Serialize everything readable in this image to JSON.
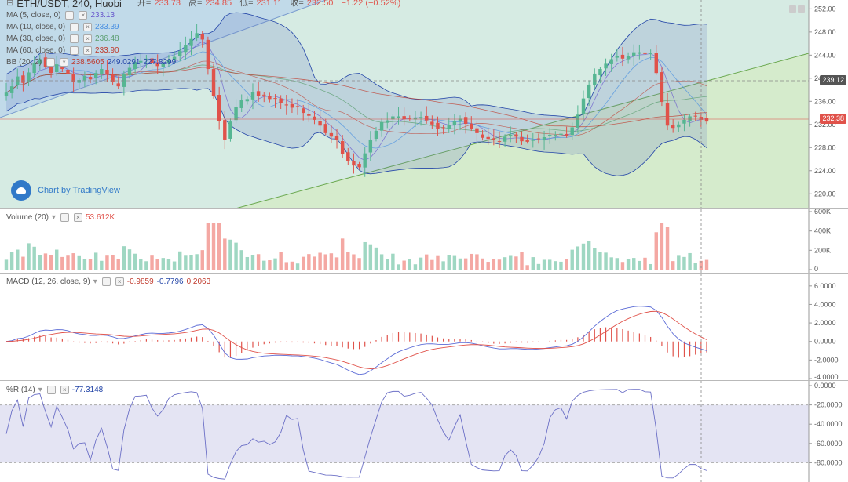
{
  "header": {
    "symbol": "ETH/USDT, 240, Huobi",
    "open_label": "开=",
    "open": "233.73",
    "high_label": "高=",
    "high": "234.85",
    "low_label": "低=",
    "low": "231.11",
    "close_label": "收=",
    "close": "232.50",
    "change": "−1.22 (−0.52%)"
  },
  "indicators": {
    "ma5": {
      "label": "MA (5, close, 0)",
      "value": "233.13"
    },
    "ma10": {
      "label": "MA (10, close, 0)",
      "value": "233.39"
    },
    "ma30": {
      "label": "MA (30, close, 0)",
      "value": "236.48"
    },
    "ma60": {
      "label": "MA (60, close, 0)",
      "value": "233.90"
    },
    "bb": {
      "label": "BB (20, 2)",
      "v1": "238.5605",
      "v2": "249.0291",
      "v3": "227.8299"
    },
    "volume": {
      "label": "Volume (20)",
      "value": "53.612K"
    },
    "macd": {
      "label": "MACD (12, 26, close, 9)",
      "v1": "-0.9859",
      "v2": "-0.7796",
      "v3": "0.2063"
    },
    "wr": {
      "label": "%R (14)",
      "value": "-77.3148"
    }
  },
  "brand": "Chart by TradingView",
  "price_tags": {
    "upper": "239.12",
    "current": "232.38"
  },
  "colors": {
    "up": "#e0524a",
    "down": "#55b692",
    "bb_fill": "#6b7fc6",
    "ma": "#c0392b"
  },
  "chart_data": [
    {
      "type": "candlestick",
      "title": "ETH/USDT, 240, Huobi",
      "ylim": [
        218,
        253
      ],
      "y_ticks": [
        "252.00",
        "248.00",
        "244.00",
        "240.00",
        "236.00",
        "232.00",
        "228.00",
        "224.00",
        "220.00"
      ],
      "close": [
        237.5,
        238.6,
        240.3,
        239.2,
        241.0,
        242.7,
        243.3,
        242.0,
        240.9,
        242.4,
        241.6,
        240.7,
        239.3,
        239.7,
        240.4,
        239.8,
        240.9,
        241.6,
        240.6,
        239.4,
        238.6,
        240.7,
        241.8,
        242.8,
        243.0,
        243.4,
        242.6,
        242.1,
        242.5,
        243.2,
        243.7,
        244.7,
        245.8,
        246.8,
        247.8,
        246.7,
        241.6,
        236.9,
        232.6,
        229.4,
        232.5,
        235.0,
        236.2,
        236.4,
        237.6,
        236.9,
        237.1,
        236.4,
        236.5,
        235.7,
        235.3,
        234.9,
        235.0,
        234.0,
        233.5,
        232.8,
        231.8,
        230.5,
        229.9,
        229.3,
        226.9,
        225.6,
        224.9,
        224.6,
        227.0,
        229.4,
        230.9,
        232.4,
        232.7,
        233.4,
        233.4,
        232.9,
        233.0,
        233.2,
        233.3,
        232.7,
        232.0,
        231.3,
        231.5,
        231.9,
        232.6,
        233.0,
        232.1,
        231.3,
        230.5,
        229.7,
        229.5,
        229.3,
        229.1,
        229.9,
        230.2,
        229.9,
        229.1,
        229.0,
        229.3,
        229.5,
        229.8,
        230.2,
        230.2,
        230.4,
        230.1,
        231.5,
        233.7,
        236.5,
        238.9,
        240.8,
        241.6,
        242.5,
        243.3,
        243.9,
        243.4,
        243.9,
        244.5,
        244.5,
        244.2,
        244.3,
        240.9,
        235.9,
        231.8,
        231.4,
        232.0,
        232.8,
        233.4,
        233.4,
        232.8,
        232.5
      ],
      "volume_ylim": [
        0,
        600000
      ],
      "volume_ticks": [
        "600K",
        "400K",
        "200K",
        "0"
      ],
      "macd_ylim": [
        -4,
        7
      ],
      "macd_ticks": [
        "6.0000",
        "4.0000",
        "2.0000",
        "0.0000",
        "-2.0000",
        "-4.0000"
      ],
      "wr_ylim": [
        -100,
        0
      ],
      "wr_ticks": [
        "0.0000",
        "-20.0000",
        "-40.0000",
        "-60.0000",
        "-80.0000"
      ]
    }
  ]
}
